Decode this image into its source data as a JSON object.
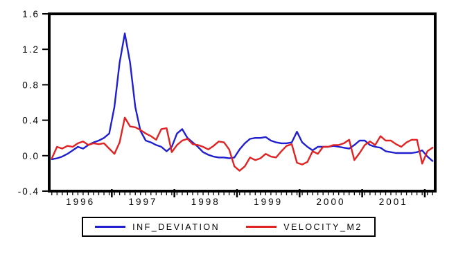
{
  "chart_data": {
    "type": "line",
    "title": "",
    "xlabel": "",
    "ylabel": "",
    "x_frequency": "monthly",
    "x_start": "1996M01",
    "x_end": "2002M02",
    "x_year_tick_labels": [
      "1996",
      "1997",
      "1998",
      "1999",
      "2000",
      "2001"
    ],
    "y_ticks": [
      1.6,
      1.2,
      0.8,
      0.4,
      0.0,
      -0.4
    ],
    "y_tick_labels": [
      "1.6",
      "1.2",
      "0.8",
      "0.4",
      "0.0",
      "-0.4"
    ],
    "ylim": [
      -0.4,
      1.6
    ],
    "grid": false,
    "legend_position": "bottom-boxed",
    "axis_color": "#000000",
    "background_color": "#ffffff",
    "series": [
      {
        "name": "INF_DEVIATION",
        "color": "#1f1fd0",
        "values": [
          -0.04,
          -0.03,
          -0.01,
          0.02,
          0.06,
          0.1,
          0.08,
          0.12,
          0.15,
          0.17,
          0.2,
          0.25,
          0.55,
          1.05,
          1.38,
          1.05,
          0.55,
          0.28,
          0.17,
          0.15,
          0.12,
          0.1,
          0.05,
          0.1,
          0.25,
          0.3,
          0.2,
          0.15,
          0.1,
          0.04,
          0.01,
          -0.01,
          -0.02,
          -0.02,
          -0.03,
          -0.02,
          0.07,
          0.14,
          0.19,
          0.2,
          0.2,
          0.21,
          0.17,
          0.15,
          0.14,
          0.14,
          0.15,
          0.27,
          0.15,
          0.1,
          0.06,
          0.1,
          0.1,
          0.1,
          0.11,
          0.1,
          0.09,
          0.08,
          0.12,
          0.17,
          0.17,
          0.12,
          0.1,
          0.09,
          0.05,
          0.04,
          0.03,
          0.03,
          0.03,
          0.03,
          0.04,
          0.06,
          -0.01,
          -0.06
        ]
      },
      {
        "name": "VELOCITY_M2",
        "color": "#e02222",
        "values": [
          -0.03,
          0.1,
          0.08,
          0.11,
          0.1,
          0.14,
          0.16,
          0.12,
          0.14,
          0.13,
          0.14,
          0.08,
          0.02,
          0.15,
          0.43,
          0.33,
          0.32,
          0.29,
          0.25,
          0.22,
          0.18,
          0.3,
          0.31,
          0.04,
          0.12,
          0.17,
          0.19,
          0.13,
          0.12,
          0.1,
          0.07,
          0.11,
          0.16,
          0.15,
          0.07,
          -0.12,
          -0.17,
          -0.12,
          -0.02,
          -0.05,
          -0.03,
          0.02,
          -0.01,
          -0.02,
          0.05,
          0.11,
          0.13,
          -0.08,
          -0.1,
          -0.07,
          0.05,
          0.02,
          0.1,
          0.1,
          0.12,
          0.12,
          0.14,
          0.18,
          -0.05,
          0.03,
          0.12,
          0.16,
          0.12,
          0.22,
          0.17,
          0.17,
          0.13,
          0.1,
          0.15,
          0.18,
          0.18,
          -0.09,
          0.05,
          0.09
        ]
      }
    ]
  },
  "legend": {
    "items": [
      {
        "label": "INF_DEVIATION",
        "color": "#1f1fd0"
      },
      {
        "label": "VELOCITY_M2",
        "color": "#e02222"
      }
    ]
  }
}
